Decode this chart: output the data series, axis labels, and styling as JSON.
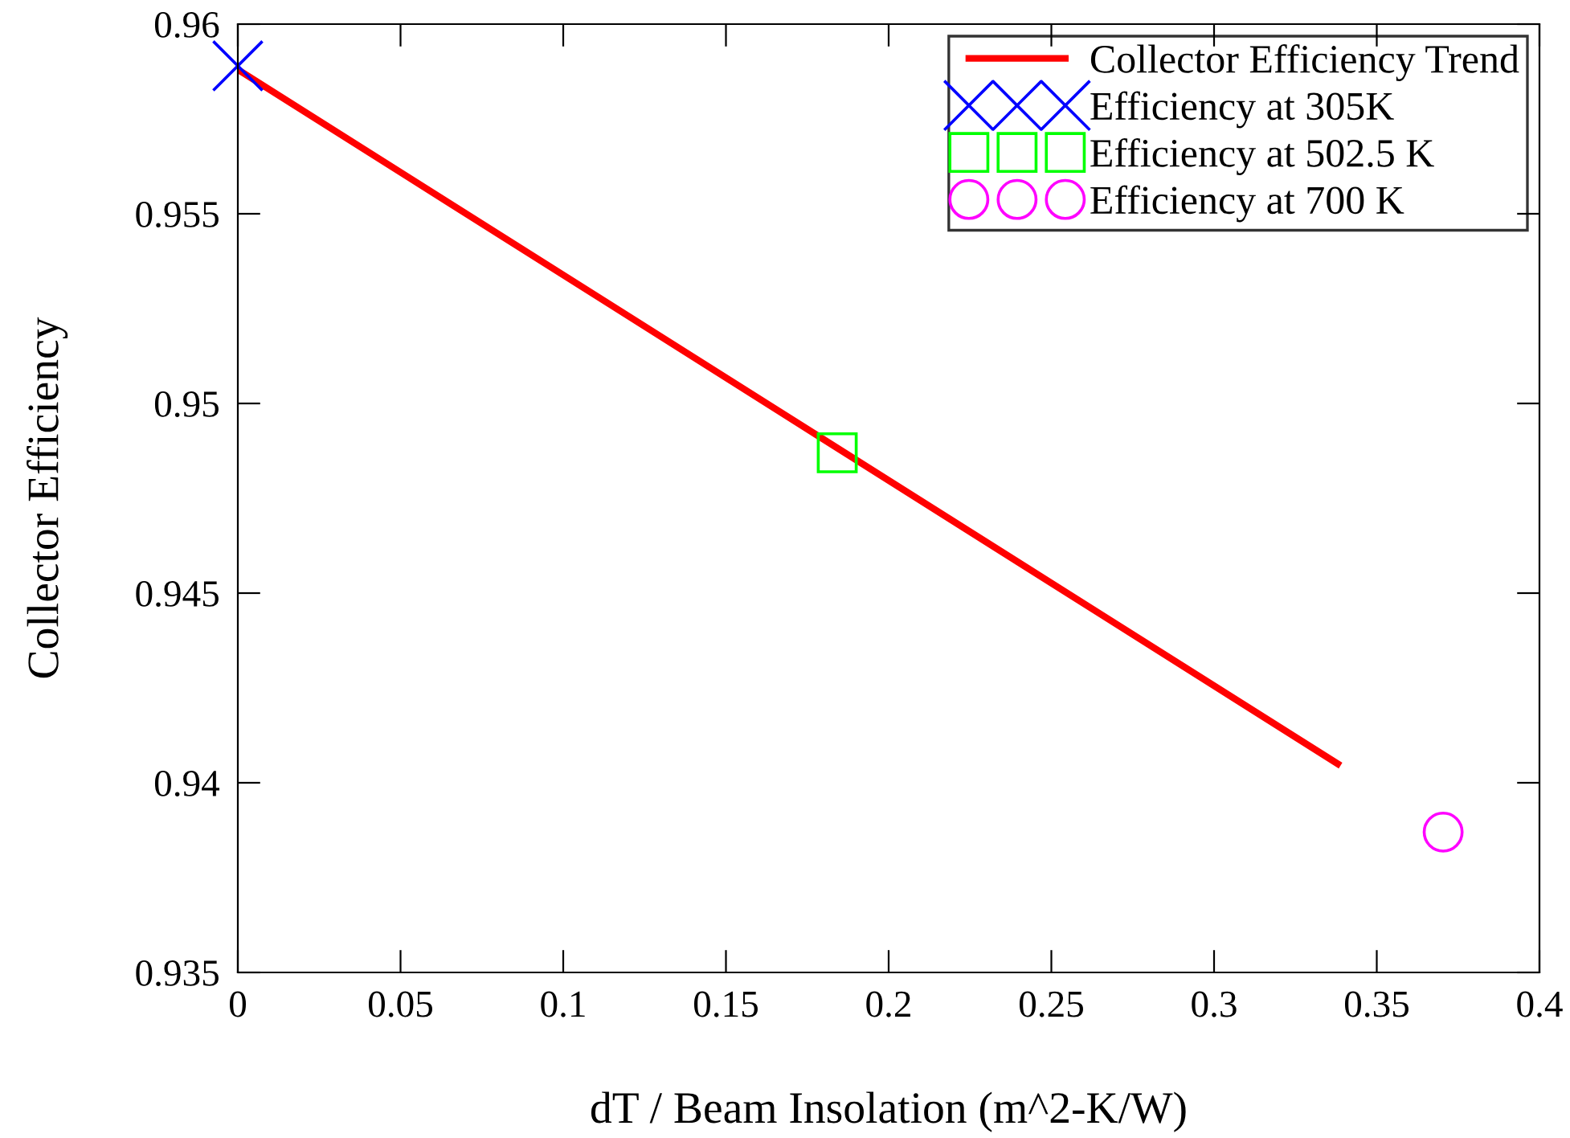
{
  "chart_data": {
    "type": "line",
    "xlabel": "dT / Beam Insolation (m^2-K/W)",
    "ylabel": "Collector Efficiency",
    "xlim": [
      0,
      0.4
    ],
    "ylim": [
      0.935,
      0.96
    ],
    "xticks": [
      0,
      0.05,
      0.1,
      0.15,
      0.2,
      0.25,
      0.3,
      0.35,
      0.4
    ],
    "yticks": [
      0.935,
      0.94,
      0.945,
      0.95,
      0.955,
      0.96
    ],
    "grid": false,
    "legend": "top right",
    "series": [
      {
        "name": "Collector Efficiency Trend",
        "color": "#ff0000",
        "line_style": "solid",
        "x": [
          0,
          0.338
        ],
        "values": [
          0.9588,
          0.9405
        ]
      },
      {
        "name": "Efficiency at 305K",
        "type": "scatter",
        "color": "#0000ff",
        "marker": "cross",
        "x": [
          0
        ],
        "values": [
          0.9589
        ]
      },
      {
        "name": "Efficiency at 502.5 K",
        "type": "scatter",
        "color": "#00ff00",
        "marker": "square",
        "x": [
          0.1842
        ],
        "values": [
          0.9487
        ]
      },
      {
        "name": "Efficiency at 700 K",
        "type": "scatter",
        "color": "#ff00ff",
        "marker": "circle",
        "x": [
          0.3704
        ],
        "values": [
          0.9387
        ]
      }
    ]
  }
}
